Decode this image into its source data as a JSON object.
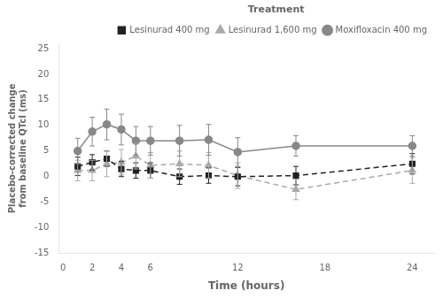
{
  "chart_data": {
    "type": "line",
    "xlabel": "Time (hours)",
    "ylabel": "Placebo-corrected change\nfrom baseline QTcI (ms)",
    "legend_title": "Treatment",
    "legend": "upper right",
    "grid": false,
    "xlim": [
      -0.3,
      25.5
    ],
    "ylim": [
      -15,
      26
    ],
    "xticks": [
      0,
      2,
      4,
      6,
      12,
      18,
      24
    ],
    "yticks": [
      -15,
      -10,
      -5,
      0,
      5,
      10,
      15,
      20,
      25
    ],
    "x": [
      1,
      2,
      3,
      4,
      5,
      6,
      8,
      10,
      12,
      16,
      24
    ],
    "series": [
      {
        "name": "Lesinurad 400 mg",
        "color": "#222222",
        "line_style": "dashed",
        "marker": "square",
        "values": [
          2.0,
          2.8,
          3.5,
          1.5,
          1.2,
          1.2,
          0.0,
          0.2,
          0.0,
          0.2,
          2.5
        ],
        "yerr_lo": [
          1.8,
          1.5,
          1.5,
          1.5,
          1.5,
          1.5,
          1.5,
          1.5,
          1.8,
          1.8,
          2.0
        ],
        "yerr_hi": [
          1.8,
          1.5,
          1.5,
          1.5,
          1.5,
          1.5,
          1.5,
          1.5,
          1.8,
          1.8,
          2.0
        ]
      },
      {
        "name": "Lesinurad 1,600 mg",
        "color": "#aaaaaa",
        "line_style": "dashed",
        "marker": "triangle",
        "values": [
          1.2,
          1.2,
          2.5,
          2.8,
          4.0,
          2.2,
          2.5,
          2.2,
          0.2,
          -2.5,
          1.2
        ],
        "yerr_lo": [
          2.0,
          2.0,
          2.5,
          2.5,
          2.5,
          2.5,
          2.5,
          2.5,
          2.5,
          2.0,
          2.5
        ],
        "yerr_hi": [
          2.0,
          2.0,
          2.5,
          2.5,
          2.5,
          2.5,
          2.5,
          2.5,
          2.5,
          2.0,
          2.5
        ]
      },
      {
        "name": "Moxifloxacin 400 mg",
        "color": "#888888",
        "line_style": "solid",
        "marker": "circle",
        "values": [
          5.0,
          8.8,
          10.2,
          9.2,
          7.0,
          7.0,
          7.0,
          7.2,
          4.8,
          6.0,
          6.0
        ],
        "yerr_lo": [
          2.5,
          2.8,
          3.0,
          3.0,
          2.8,
          2.8,
          3.0,
          3.0,
          2.8,
          2.0,
          2.0
        ],
        "yerr_hi": [
          2.5,
          2.8,
          3.0,
          3.0,
          2.8,
          2.8,
          3.0,
          3.0,
          2.8,
          2.0,
          2.0
        ]
      }
    ]
  }
}
